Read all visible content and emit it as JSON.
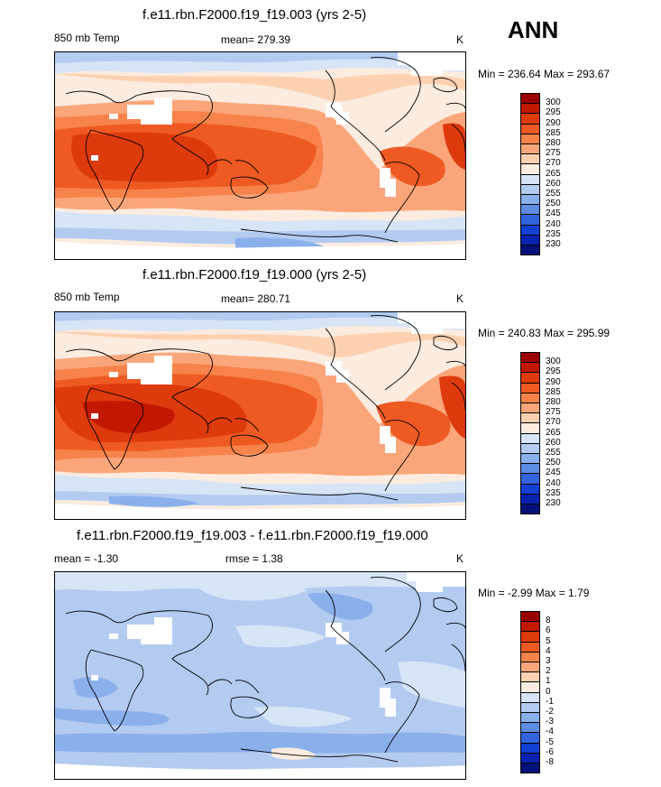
{
  "season": "ANN",
  "panels": [
    {
      "title": "f.e11.rbn.F2000.f19_f19.003 (yrs 2-5)",
      "left": "850 mb Temp",
      "center": "mean= 279.39",
      "units": "K",
      "minmax": "Min = 236.64 Max = 293.67",
      "levels": [
        "300",
        "295",
        "290",
        "285",
        "280",
        "275",
        "270",
        "265",
        "260",
        "255",
        "250",
        "245",
        "240",
        "235",
        "230"
      ],
      "colors": [
        "#9b0000",
        "#c21800",
        "#de3a0c",
        "#ee5a22",
        "#f7834a",
        "#fba67a",
        "#fdd0b0",
        "#fbecdf",
        "#d6e4f6",
        "#b3cbf1",
        "#8ab0ec",
        "#5d8de4",
        "#3065dd",
        "#1140d3",
        "#0a22b0",
        "#02127a"
      ]
    },
    {
      "title": "f.e11.rbn.F2000.f19_f19.000 (yrs 2-5)",
      "left": "850 mb Temp",
      "center": "mean= 280.71",
      "units": "K",
      "minmax": "Min = 240.83 Max = 295.99",
      "levels": [
        "300",
        "295",
        "290",
        "285",
        "280",
        "275",
        "270",
        "265",
        "260",
        "255",
        "250",
        "245",
        "240",
        "235",
        "230"
      ],
      "colors": [
        "#9b0000",
        "#c21800",
        "#de3a0c",
        "#ee5a22",
        "#f7834a",
        "#fba67a",
        "#fdd0b0",
        "#fbecdf",
        "#d6e4f6",
        "#b3cbf1",
        "#8ab0ec",
        "#5d8de4",
        "#3065dd",
        "#1140d3",
        "#0a22b0",
        "#02127a"
      ]
    },
    {
      "title": "f.e11.rbn.F2000.f19_f19.003 - f.e11.rbn.F2000.f19_f19.000",
      "left": "mean =  -1.30",
      "center": "rmse =   1.38",
      "units": "K",
      "minmax": "Min =  -2.99 Max =   1.79",
      "levels": [
        "8",
        "6",
        "5",
        "4",
        "3",
        "2",
        "1",
        "0",
        "-1",
        "-2",
        "-3",
        "-4",
        "-5",
        "-6",
        "-8"
      ],
      "colors": [
        "#9b0000",
        "#c21800",
        "#de3a0c",
        "#ee5a22",
        "#f7834a",
        "#fba67a",
        "#fdd0b0",
        "#fbecdf",
        "#d6e4f6",
        "#b3cbf1",
        "#8ab0ec",
        "#5d8de4",
        "#3065dd",
        "#1140d3",
        "#0a22b0",
        "#02127a"
      ]
    }
  ]
}
